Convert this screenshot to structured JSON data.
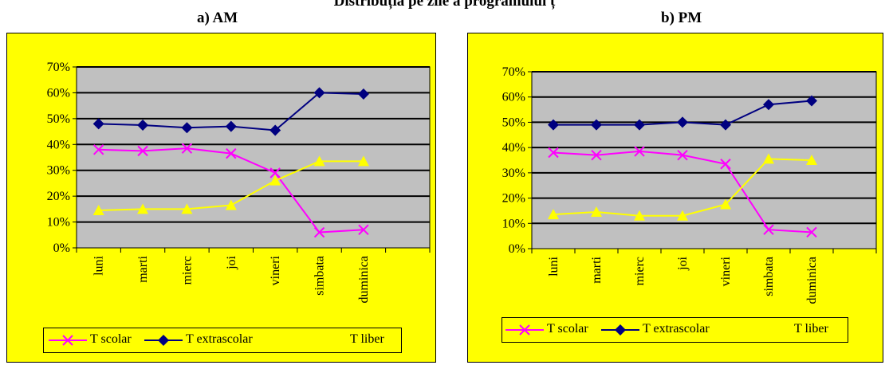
{
  "page_title": "Distribuția pe zile a programului ț",
  "panels": [
    {
      "title": "a) AM"
    },
    {
      "title": "b) PM"
    }
  ],
  "legend": {
    "series": [
      {
        "name": "T scolar",
        "color": "#ff00ff",
        "marker": "x-icon"
      },
      {
        "name": "T extrascolar",
        "color": "#000080",
        "marker": "diamond-icon"
      },
      {
        "name": "T liber",
        "color": "#ffff00",
        "marker": "triangle-icon"
      }
    ]
  },
  "colors": {
    "background": "#ffff00",
    "plot_area": "#c0c0c0",
    "grid": "#000000"
  },
  "chart_data": [
    {
      "type": "line",
      "title": "a) AM",
      "categories": [
        "luni",
        "marti",
        "mierc",
        "joi",
        "vineri",
        "simbata",
        "duminica"
      ],
      "yticks": [
        "0%",
        "10%",
        "20%",
        "30%",
        "40%",
        "50%",
        "60%",
        "70%"
      ],
      "ylim": [
        0,
        70
      ],
      "grid": true,
      "legend_position": "bottom",
      "series": [
        {
          "name": "T scolar",
          "color": "#ff00ff",
          "marker": "x",
          "values": [
            38,
            37.5,
            38.5,
            36.5,
            29,
            6,
            7
          ]
        },
        {
          "name": "T extrascolar",
          "color": "#000080",
          "marker": "diamond",
          "values": [
            48,
            47.5,
            46.5,
            47,
            45.5,
            60,
            59.5
          ]
        },
        {
          "name": "T liber",
          "color": "#ffff00",
          "marker": "triangle",
          "values": [
            14.5,
            15,
            15,
            16.5,
            26,
            33.5,
            33.5
          ]
        }
      ]
    },
    {
      "type": "line",
      "title": "b) PM",
      "categories": [
        "luni",
        "marti",
        "mierc",
        "joi",
        "vineri",
        "simbata",
        "duminica"
      ],
      "yticks": [
        "0%",
        "10%",
        "20%",
        "30%",
        "40%",
        "50%",
        "60%",
        "70%"
      ],
      "ylim": [
        0,
        70
      ],
      "grid": true,
      "legend_position": "bottom",
      "series": [
        {
          "name": "T scolar",
          "color": "#ff00ff",
          "marker": "x",
          "values": [
            38,
            37,
            38.5,
            37,
            33.5,
            7.5,
            6.5
          ]
        },
        {
          "name": "T extrascolar",
          "color": "#000080",
          "marker": "diamond",
          "values": [
            49,
            49,
            49,
            50,
            49,
            57,
            58.5
          ]
        },
        {
          "name": "T liber",
          "color": "#ffff00",
          "marker": "triangle",
          "values": [
            13.5,
            14.5,
            13,
            13,
            17.5,
            35.5,
            35
          ]
        }
      ]
    }
  ]
}
